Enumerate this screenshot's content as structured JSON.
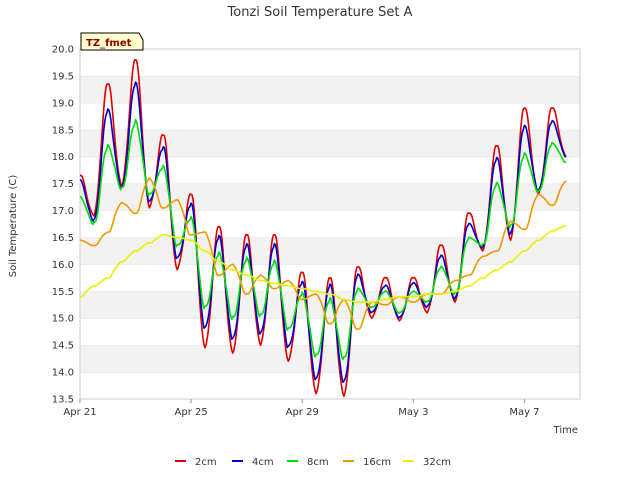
{
  "chart_data": {
    "type": "line",
    "title": "Tonzi Soil Temperature Set A",
    "xlabel": "Time",
    "ylabel": "Soil Temperature (C)",
    "badge": "TZ_fmet",
    "x_unit": "day",
    "x_ticks": [
      "Apr 21",
      "Apr 25",
      "Apr 29",
      "May 3",
      "May 7"
    ],
    "xlim": [
      "Apr 21",
      "May 9"
    ],
    "ylim": [
      13.5,
      20.0
    ],
    "y_ticks": [
      "13.5",
      "14.0",
      "14.5",
      "15.0",
      "15.5",
      "16.0",
      "16.5",
      "17.0",
      "17.5",
      "18.0",
      "18.5",
      "19.0",
      "19.5",
      "20.0"
    ],
    "grid": "horizontal bands",
    "legend_position": "bottom",
    "series": [
      {
        "name": "2cm",
        "color": "#dd0000",
        "x": [
          "Apr 21",
          "Apr 21 12:00",
          "Apr 22",
          "Apr 22 12:00",
          "Apr 23",
          "Apr 23 12:00",
          "Apr 24",
          "Apr 24 12:00",
          "Apr 25",
          "Apr 25 12:00",
          "Apr 26",
          "Apr 26 12:00",
          "Apr 27",
          "Apr 27 12:00",
          "Apr 28",
          "Apr 28 12:00",
          "Apr 29",
          "Apr 29 12:00",
          "Apr 30",
          "Apr 30 12:00",
          "May 1",
          "May 1 12:00",
          "May 2",
          "May 2 12:00",
          "May 3",
          "May 3 12:00",
          "May 4",
          "May 4 12:00",
          "May 5",
          "May 5 12:00",
          "May 6",
          "May 6 12:00",
          "May 7",
          "May 7 12:00",
          "May 8",
          "May 8 12:00"
        ],
        "y": [
          17.65,
          16.9,
          19.35,
          17.45,
          19.8,
          17.05,
          18.4,
          15.9,
          17.3,
          14.45,
          16.7,
          14.35,
          16.55,
          14.5,
          16.55,
          14.2,
          15.85,
          13.6,
          15.75,
          13.55,
          15.95,
          15.0,
          15.75,
          14.95,
          15.75,
          15.1,
          16.35,
          15.3,
          16.95,
          16.25,
          18.2,
          16.45,
          18.9,
          17.3,
          18.9,
          18.0
        ]
      },
      {
        "name": "4cm",
        "color": "#0000cc",
        "x": [
          "Apr 21",
          "Apr 21 12:00",
          "Apr 22",
          "Apr 22 12:00",
          "Apr 23",
          "Apr 23 12:00",
          "Apr 24",
          "Apr 24 12:00",
          "Apr 25",
          "Apr 25 12:00",
          "Apr 26",
          "Apr 26 12:00",
          "Apr 27",
          "Apr 27 12:00",
          "Apr 28",
          "Apr 28 12:00",
          "Apr 29",
          "Apr 29 12:00",
          "Apr 30",
          "Apr 30 12:00",
          "May 1",
          "May 1 12:00",
          "May 2",
          "May 2 12:00",
          "May 3",
          "May 3 12:00",
          "May 4",
          "May 4 12:00",
          "May 5",
          "May 5 12:00",
          "May 6",
          "May 6 12:00",
          "May 7",
          "May 7 12:00",
          "May 8",
          "May 8 12:00"
        ],
        "y": [
          17.55,
          16.8,
          18.85,
          17.4,
          19.35,
          17.15,
          18.15,
          16.1,
          17.1,
          14.8,
          16.5,
          14.6,
          16.35,
          14.7,
          16.35,
          14.45,
          15.65,
          13.85,
          15.6,
          13.8,
          15.8,
          15.1,
          15.6,
          15.0,
          15.65,
          15.2,
          16.15,
          15.35,
          16.75,
          16.3,
          17.95,
          16.55,
          18.55,
          17.35,
          18.65,
          18.0
        ]
      },
      {
        "name": "8cm",
        "color": "#00dd00",
        "x": [
          "Apr 21",
          "Apr 21 12:00",
          "Apr 22",
          "Apr 22 12:00",
          "Apr 23",
          "Apr 23 12:00",
          "Apr 24",
          "Apr 24 12:00",
          "Apr 25",
          "Apr 25 12:00",
          "Apr 26",
          "Apr 26 12:00",
          "Apr 27",
          "Apr 27 12:00",
          "Apr 28",
          "Apr 28 12:00",
          "Apr 29",
          "Apr 29 12:00",
          "Apr 30",
          "Apr 30 12:00",
          "May 1",
          "May 1 12:00",
          "May 2",
          "May 2 12:00",
          "May 3",
          "May 3 12:00",
          "May 4",
          "May 4 12:00",
          "May 5",
          "May 5 12:00",
          "May 6",
          "May 6 12:00",
          "May 7",
          "May 7 12:00",
          "May 8",
          "May 8 12:00"
        ],
        "y": [
          17.25,
          16.75,
          18.2,
          17.4,
          18.65,
          17.3,
          17.8,
          16.35,
          16.85,
          15.2,
          16.2,
          15.0,
          16.1,
          15.05,
          16.05,
          14.8,
          15.45,
          14.3,
          15.35,
          14.25,
          15.55,
          15.2,
          15.5,
          15.1,
          15.5,
          15.3,
          15.95,
          15.45,
          16.5,
          16.35,
          17.5,
          16.7,
          18.05,
          17.35,
          18.25,
          17.9
        ]
      },
      {
        "name": "16cm",
        "color": "#ee9900",
        "x": [
          "Apr 21",
          "Apr 21 12:00",
          "Apr 22",
          "Apr 22 12:00",
          "Apr 23",
          "Apr 23 12:00",
          "Apr 24",
          "Apr 24 12:00",
          "Apr 25",
          "Apr 25 12:00",
          "Apr 26",
          "Apr 26 12:00",
          "Apr 27",
          "Apr 27 12:00",
          "Apr 28",
          "Apr 28 12:00",
          "Apr 29",
          "Apr 29 12:00",
          "Apr 30",
          "Apr 30 12:00",
          "May 1",
          "May 1 12:00",
          "May 2",
          "May 2 12:00",
          "May 3",
          "May 3 12:00",
          "May 4",
          "May 4 12:00",
          "May 5",
          "May 5 12:00",
          "May 6",
          "May 6 12:00",
          "May 7",
          "May 7 12:00",
          "May 8",
          "May 8 12:00"
        ],
        "y": [
          16.45,
          16.35,
          16.6,
          17.15,
          16.95,
          17.6,
          17.05,
          17.2,
          16.55,
          16.6,
          15.8,
          16.0,
          15.45,
          15.8,
          15.55,
          15.7,
          15.35,
          15.45,
          14.9,
          15.35,
          14.8,
          15.3,
          15.25,
          15.4,
          15.3,
          15.45,
          15.45,
          15.7,
          15.8,
          16.15,
          16.25,
          16.8,
          16.65,
          17.3,
          17.1,
          17.55
        ]
      },
      {
        "name": "32cm",
        "color": "#eeee00",
        "x": [
          "Apr 21",
          "Apr 21 12:00",
          "Apr 22",
          "Apr 22 12:00",
          "Apr 23",
          "Apr 23 12:00",
          "Apr 24",
          "Apr 24 12:00",
          "Apr 25",
          "Apr 25 12:00",
          "Apr 26",
          "Apr 26 12:00",
          "Apr 27",
          "Apr 27 12:00",
          "Apr 28",
          "Apr 28 12:00",
          "Apr 29",
          "Apr 29 12:00",
          "Apr 30",
          "Apr 30 12:00",
          "May 1",
          "May 1 12:00",
          "May 2",
          "May 2 12:00",
          "May 3",
          "May 3 12:00",
          "May 4",
          "May 4 12:00",
          "May 5",
          "May 5 12:00",
          "May 6",
          "May 6 12:00",
          "May 7",
          "May 7 12:00",
          "May 8",
          "May 8 12:00"
        ],
        "y": [
          15.4,
          15.6,
          15.75,
          16.05,
          16.25,
          16.4,
          16.55,
          16.5,
          16.45,
          16.25,
          16.05,
          15.9,
          15.8,
          15.7,
          15.65,
          15.6,
          15.55,
          15.5,
          15.45,
          15.35,
          15.3,
          15.3,
          15.35,
          15.4,
          15.4,
          15.45,
          15.45,
          15.5,
          15.6,
          15.75,
          15.9,
          16.05,
          16.25,
          16.45,
          16.62,
          16.72
        ]
      }
    ]
  }
}
